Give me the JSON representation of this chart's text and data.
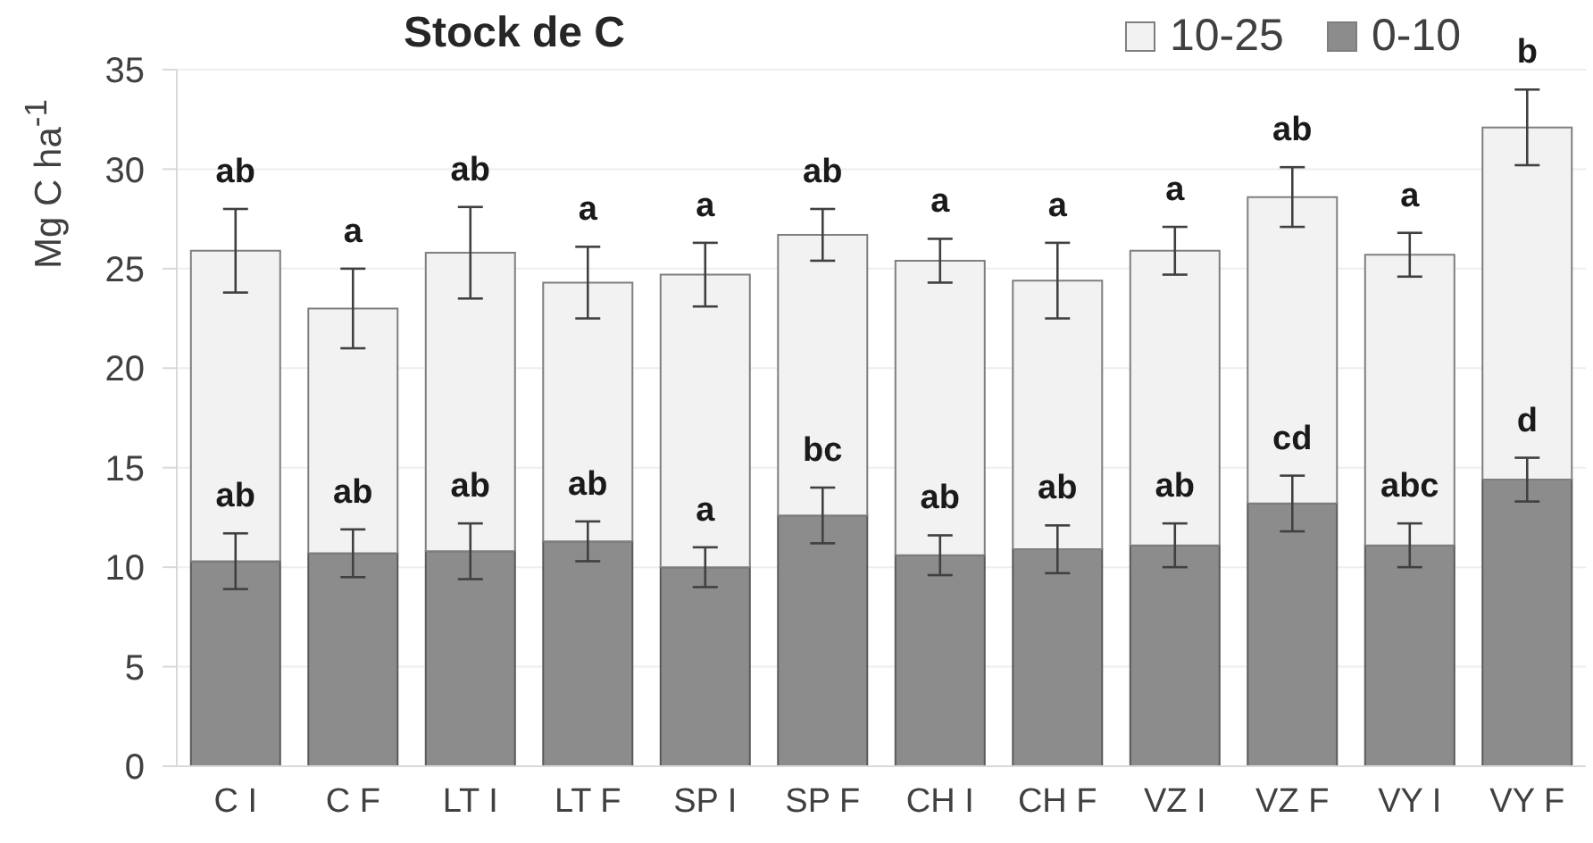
{
  "chart_data": {
    "type": "bar",
    "title": "Stock de C",
    "ylabel": "Mg C ha$^{-1}$",
    "categories": [
      "C I",
      "C F",
      "LT I",
      "LT F",
      "SP I",
      "SP F",
      "CH I",
      "CH F",
      "VZ I",
      "VZ F",
      "VY I",
      "VY F"
    ],
    "series": [
      {
        "name": "0-10",
        "color": "#8c8c8c",
        "values": [
          10.3,
          10.7,
          10.8,
          11.3,
          10.0,
          12.6,
          10.6,
          10.9,
          11.1,
          13.2,
          11.1,
          14.4
        ],
        "errors": [
          1.4,
          1.2,
          1.4,
          1.0,
          1.0,
          1.4,
          1.0,
          1.2,
          1.1,
          1.4,
          1.1,
          1.1
        ]
      },
      {
        "name": "10-25",
        "color": "#f2f2f2",
        "values": [
          15.6,
          12.3,
          15.0,
          13.0,
          14.7,
          14.1,
          14.8,
          13.5,
          14.8,
          15.4,
          14.6,
          17.7
        ],
        "errors": [
          2.1,
          2.0,
          2.3,
          1.8,
          1.6,
          1.3,
          1.1,
          1.9,
          1.2,
          1.5,
          1.1,
          1.9
        ]
      }
    ],
    "stacked": true,
    "ylim": [
      0,
      35
    ],
    "yticks": [
      0,
      5,
      10,
      15,
      20,
      25,
      30,
      35
    ],
    "grid": "y",
    "legend": "top right",
    "annotations": [
      {
        "text": "ab",
        "x": "C I",
        "y": 11.7
      },
      {
        "text": "ab",
        "x": "C F",
        "y": 11.9
      },
      {
        "text": "ab",
        "x": "LT I",
        "y": 12.2
      },
      {
        "text": "ab",
        "x": "LT F",
        "y": 12.3
      },
      {
        "text": "a",
        "x": "SP I",
        "y": 11.0
      },
      {
        "text": "bc",
        "x": "SP F",
        "y": 14.0
      },
      {
        "text": "ab",
        "x": "CH I",
        "y": 11.6
      },
      {
        "text": "ab",
        "x": "CH F",
        "y": 12.1
      },
      {
        "text": "ab",
        "x": "VZ I",
        "y": 12.2
      },
      {
        "text": "cd",
        "x": "VZ F",
        "y": 14.6
      },
      {
        "text": "abc",
        "x": "VY I",
        "y": 12.2
      },
      {
        "text": "d",
        "x": "VY F",
        "y": 15.5
      },
      {
        "text": "ab",
        "x": "C I",
        "y": 28.0
      },
      {
        "text": "a",
        "x": "C F",
        "y": 25.0
      },
      {
        "text": "ab",
        "x": "LT I",
        "y": 28.1
      },
      {
        "text": "a",
        "x": "LT F",
        "y": 26.1
      },
      {
        "text": "a",
        "x": "SP I",
        "y": 26.3
      },
      {
        "text": "ab",
        "x": "SP F",
        "y": 28.0
      },
      {
        "text": "a",
        "x": "CH I",
        "y": 26.5
      },
      {
        "text": "a",
        "x": "CH F",
        "y": 26.3
      },
      {
        "text": "a",
        "x": "VZ I",
        "y": 27.1
      },
      {
        "text": "ab",
        "x": "VZ F",
        "y": 30.1
      },
      {
        "text": "a",
        "x": "VY I",
        "y": 26.8
      },
      {
        "text": "b",
        "x": "VY F",
        "y": 34.0
      }
    ]
  }
}
